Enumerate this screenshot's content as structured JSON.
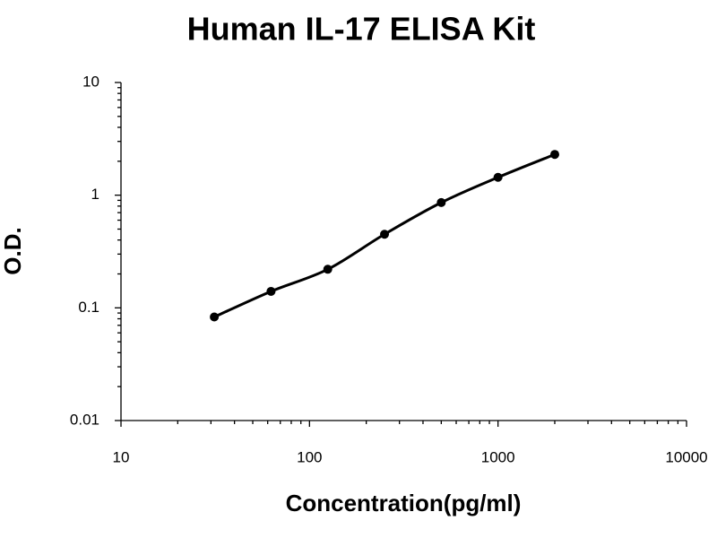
{
  "chart_data": {
    "type": "scatter",
    "title": "Human IL-17 ELISA Kit",
    "x_label": "Concentration(pg/ml)",
    "y_label": "O.D.",
    "x_scale": "log",
    "y_scale": "log",
    "xlim": [
      10,
      10000
    ],
    "xticks": [
      10,
      100,
      1000,
      10000
    ],
    "ylim": [
      0.01,
      10
    ],
    "yticks": [
      0.01,
      0.1,
      1,
      10
    ],
    "minor_ticks": true,
    "fit_line": true,
    "grid": false,
    "series": [
      {
        "color": "#000000",
        "x": [
          31.25,
          62.5,
          125,
          250,
          500,
          1000,
          2000
        ],
        "values": [
          0.083,
          0.14,
          0.22,
          0.45,
          0.86,
          1.44,
          2.3
        ]
      }
    ]
  }
}
